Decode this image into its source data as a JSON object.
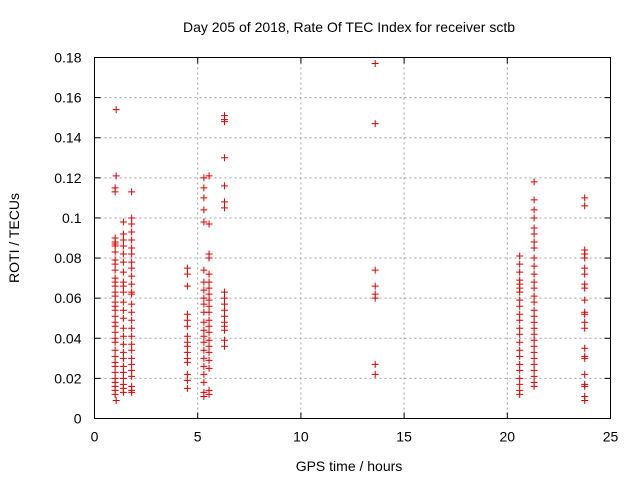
{
  "chart_data": {
    "type": "scatter",
    "title": "Day 205 of 2018, Rate Of TEC Index for receiver sctb",
    "xlabel": "GPS time / hours",
    "ylabel": "ROTI / TECUs",
    "xlim": [
      0,
      25
    ],
    "ylim": [
      0,
      0.18
    ],
    "xticks": [
      0,
      5,
      10,
      15,
      20,
      25
    ],
    "yticks": [
      0,
      0.02,
      0.04,
      0.06,
      0.08,
      0.1,
      0.12,
      0.14,
      0.16,
      0.18
    ],
    "xtick_labels": [
      "0",
      "5",
      "10",
      "15",
      "20",
      "25"
    ],
    "ytick_labels": [
      "0",
      "0.02",
      "0.04",
      "0.06",
      "0.08",
      "0.1",
      "0.12",
      "0.14",
      "0.16",
      "0.18"
    ],
    "grid": true,
    "marker": "+",
    "marker_color": "#dd0000",
    "series": [
      {
        "name": "ROTI",
        "points": [
          [
            1.05,
            0.154
          ],
          [
            1.05,
            0.121
          ],
          [
            1.0,
            0.115
          ],
          [
            1.0,
            0.113
          ],
          [
            1.0,
            0.09
          ],
          [
            1.0,
            0.088
          ],
          [
            1.0,
            0.087
          ],
          [
            1.0,
            0.086
          ],
          [
            1.0,
            0.083
          ],
          [
            1.0,
            0.079
          ],
          [
            1.0,
            0.077
          ],
          [
            1.0,
            0.074
          ],
          [
            1.0,
            0.07
          ],
          [
            1.0,
            0.068
          ],
          [
            1.0,
            0.066
          ],
          [
            1.0,
            0.063
          ],
          [
            1.0,
            0.061
          ],
          [
            1.0,
            0.058
          ],
          [
            1.0,
            0.056
          ],
          [
            1.0,
            0.054
          ],
          [
            1.0,
            0.051
          ],
          [
            1.0,
            0.048
          ],
          [
            1.0,
            0.046
          ],
          [
            1.0,
            0.043
          ],
          [
            1.0,
            0.04
          ],
          [
            1.0,
            0.038
          ],
          [
            1.0,
            0.034
          ],
          [
            1.0,
            0.031
          ],
          [
            1.0,
            0.028
          ],
          [
            1.0,
            0.026
          ],
          [
            1.0,
            0.023
          ],
          [
            1.0,
            0.02
          ],
          [
            1.0,
            0.018
          ],
          [
            1.0,
            0.016
          ],
          [
            1.0,
            0.014
          ],
          [
            1.0,
            0.012
          ],
          [
            1.05,
            0.009
          ],
          [
            1.4,
            0.098
          ],
          [
            1.4,
            0.092
          ],
          [
            1.4,
            0.089
          ],
          [
            1.4,
            0.086
          ],
          [
            1.4,
            0.082
          ],
          [
            1.4,
            0.078
          ],
          [
            1.4,
            0.073
          ],
          [
            1.4,
            0.068
          ],
          [
            1.4,
            0.066
          ],
          [
            1.4,
            0.063
          ],
          [
            1.4,
            0.058
          ],
          [
            1.4,
            0.054
          ],
          [
            1.4,
            0.05
          ],
          [
            1.4,
            0.045
          ],
          [
            1.4,
            0.041
          ],
          [
            1.4,
            0.037
          ],
          [
            1.4,
            0.033
          ],
          [
            1.4,
            0.03
          ],
          [
            1.4,
            0.026
          ],
          [
            1.4,
            0.023
          ],
          [
            1.4,
            0.02
          ],
          [
            1.4,
            0.017
          ],
          [
            1.4,
            0.015
          ],
          [
            1.4,
            0.013
          ],
          [
            1.8,
            0.113
          ],
          [
            1.8,
            0.1
          ],
          [
            1.8,
            0.097
          ],
          [
            1.8,
            0.093
          ],
          [
            1.8,
            0.089
          ],
          [
            1.8,
            0.085
          ],
          [
            1.8,
            0.082
          ],
          [
            1.8,
            0.078
          ],
          [
            1.8,
            0.075
          ],
          [
            1.8,
            0.071
          ],
          [
            1.8,
            0.067
          ],
          [
            1.8,
            0.063
          ],
          [
            1.8,
            0.062
          ],
          [
            1.8,
            0.057
          ],
          [
            1.8,
            0.053
          ],
          [
            1.8,
            0.049
          ],
          [
            1.8,
            0.045
          ],
          [
            1.8,
            0.041
          ],
          [
            1.8,
            0.037
          ],
          [
            1.8,
            0.034
          ],
          [
            1.8,
            0.03
          ],
          [
            1.8,
            0.027
          ],
          [
            1.8,
            0.024
          ],
          [
            1.8,
            0.021
          ],
          [
            1.8,
            0.016
          ],
          [
            1.8,
            0.014
          ],
          [
            1.8,
            0.013
          ],
          [
            4.5,
            0.075
          ],
          [
            4.5,
            0.072
          ],
          [
            4.5,
            0.066
          ],
          [
            4.5,
            0.052
          ],
          [
            4.5,
            0.049
          ],
          [
            4.5,
            0.046
          ],
          [
            4.5,
            0.041
          ],
          [
            4.5,
            0.038
          ],
          [
            4.5,
            0.036
          ],
          [
            4.5,
            0.033
          ],
          [
            4.5,
            0.03
          ],
          [
            4.5,
            0.028
          ],
          [
            4.5,
            0.022
          ],
          [
            4.5,
            0.019
          ],
          [
            4.5,
            0.015
          ],
          [
            5.3,
            0.12
          ],
          [
            5.3,
            0.115
          ],
          [
            5.3,
            0.11
          ],
          [
            5.3,
            0.104
          ],
          [
            5.3,
            0.098
          ],
          [
            5.3,
            0.074
          ],
          [
            5.3,
            0.068
          ],
          [
            5.3,
            0.064
          ],
          [
            5.3,
            0.06
          ],
          [
            5.3,
            0.057
          ],
          [
            5.3,
            0.053
          ],
          [
            5.3,
            0.048
          ],
          [
            5.3,
            0.044
          ],
          [
            5.3,
            0.041
          ],
          [
            5.3,
            0.038
          ],
          [
            5.3,
            0.034
          ],
          [
            5.3,
            0.03
          ],
          [
            5.3,
            0.026
          ],
          [
            5.3,
            0.022
          ],
          [
            5.3,
            0.018
          ],
          [
            5.3,
            0.013
          ],
          [
            5.3,
            0.011
          ],
          [
            5.55,
            0.121
          ],
          [
            5.55,
            0.097
          ],
          [
            5.55,
            0.082
          ],
          [
            5.55,
            0.08
          ],
          [
            5.55,
            0.072
          ],
          [
            5.55,
            0.068
          ],
          [
            5.55,
            0.065
          ],
          [
            5.55,
            0.062
          ],
          [
            5.55,
            0.059
          ],
          [
            5.55,
            0.056
          ],
          [
            5.55,
            0.053
          ],
          [
            5.55,
            0.049
          ],
          [
            5.55,
            0.046
          ],
          [
            5.55,
            0.043
          ],
          [
            5.55,
            0.039
          ],
          [
            5.55,
            0.036
          ],
          [
            5.55,
            0.033
          ],
          [
            5.55,
            0.029
          ],
          [
            5.55,
            0.025
          ],
          [
            5.55,
            0.014
          ],
          [
            5.55,
            0.012
          ],
          [
            6.3,
            0.151
          ],
          [
            6.3,
            0.149
          ],
          [
            6.3,
            0.148
          ],
          [
            6.3,
            0.13
          ],
          [
            6.3,
            0.116
          ],
          [
            6.3,
            0.108
          ],
          [
            6.3,
            0.105
          ],
          [
            6.3,
            0.063
          ],
          [
            6.3,
            0.06
          ],
          [
            6.3,
            0.057
          ],
          [
            6.3,
            0.054
          ],
          [
            6.3,
            0.051
          ],
          [
            6.3,
            0.048
          ],
          [
            6.3,
            0.046
          ],
          [
            6.3,
            0.044
          ],
          [
            6.3,
            0.039
          ],
          [
            6.3,
            0.036
          ],
          [
            13.6,
            0.177
          ],
          [
            13.6,
            0.147
          ],
          [
            13.6,
            0.074
          ],
          [
            13.6,
            0.066
          ],
          [
            13.6,
            0.062
          ],
          [
            13.6,
            0.06
          ],
          [
            13.6,
            0.027
          ],
          [
            13.6,
            0.022
          ],
          [
            20.6,
            0.081
          ],
          [
            20.6,
            0.077
          ],
          [
            20.6,
            0.073
          ],
          [
            20.6,
            0.069
          ],
          [
            20.6,
            0.067
          ],
          [
            20.6,
            0.065
          ],
          [
            20.6,
            0.063
          ],
          [
            20.6,
            0.059
          ],
          [
            20.6,
            0.056
          ],
          [
            20.6,
            0.052
          ],
          [
            20.6,
            0.049
          ],
          [
            20.6,
            0.045
          ],
          [
            20.6,
            0.042
          ],
          [
            20.6,
            0.038
          ],
          [
            20.6,
            0.034
          ],
          [
            20.6,
            0.031
          ],
          [
            20.6,
            0.027
          ],
          [
            20.6,
            0.024
          ],
          [
            20.6,
            0.02
          ],
          [
            20.6,
            0.017
          ],
          [
            20.6,
            0.014
          ],
          [
            20.6,
            0.012
          ],
          [
            21.3,
            0.118
          ],
          [
            21.3,
            0.109
          ],
          [
            21.3,
            0.104
          ],
          [
            21.3,
            0.1
          ],
          [
            21.3,
            0.095
          ],
          [
            21.3,
            0.092
          ],
          [
            21.3,
            0.088
          ],
          [
            21.3,
            0.085
          ],
          [
            21.3,
            0.08
          ],
          [
            21.3,
            0.076
          ],
          [
            21.3,
            0.072
          ],
          [
            21.3,
            0.068
          ],
          [
            21.3,
            0.065
          ],
          [
            21.3,
            0.061
          ],
          [
            21.3,
            0.058
          ],
          [
            21.3,
            0.054
          ],
          [
            21.3,
            0.051
          ],
          [
            21.3,
            0.048
          ],
          [
            21.3,
            0.045
          ],
          [
            21.3,
            0.042
          ],
          [
            21.3,
            0.039
          ],
          [
            21.3,
            0.036
          ],
          [
            21.3,
            0.033
          ],
          [
            21.3,
            0.03
          ],
          [
            21.3,
            0.027
          ],
          [
            21.3,
            0.024
          ],
          [
            21.3,
            0.021
          ],
          [
            21.3,
            0.018
          ],
          [
            21.3,
            0.016
          ],
          [
            23.75,
            0.11
          ],
          [
            23.75,
            0.106
          ],
          [
            23.75,
            0.084
          ],
          [
            23.75,
            0.082
          ],
          [
            23.75,
            0.08
          ],
          [
            23.75,
            0.075
          ],
          [
            23.75,
            0.072
          ],
          [
            23.75,
            0.067
          ],
          [
            23.75,
            0.065
          ],
          [
            23.75,
            0.059
          ],
          [
            23.75,
            0.053
          ],
          [
            23.75,
            0.052
          ],
          [
            23.75,
            0.048
          ],
          [
            23.75,
            0.045
          ],
          [
            23.75,
            0.035
          ],
          [
            23.75,
            0.031
          ],
          [
            23.75,
            0.03
          ],
          [
            23.75,
            0.022
          ],
          [
            23.75,
            0.017
          ],
          [
            23.75,
            0.016
          ],
          [
            23.75,
            0.011
          ],
          [
            23.75,
            0.009
          ]
        ]
      }
    ]
  }
}
